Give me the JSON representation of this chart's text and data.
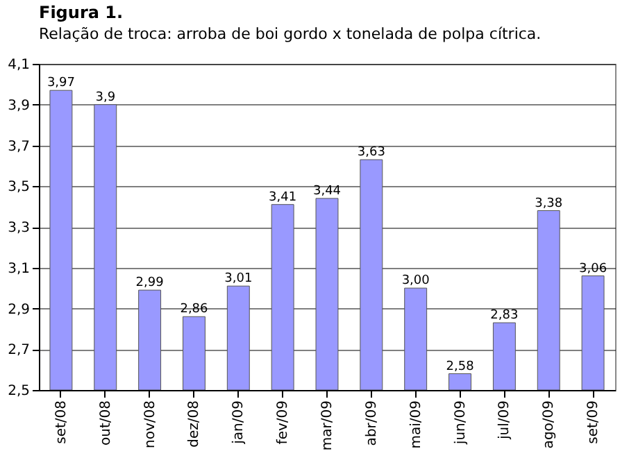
{
  "chart_data": {
    "type": "bar",
    "title": "Figura 1.",
    "subtitle": "Relação de troca: arroba de boi gordo x tonelada de polpa cítrica.",
    "categories": [
      "set/08",
      "out/08",
      "nov/08",
      "dez/08",
      "jan/09",
      "fev/09",
      "mar/09",
      "abr/09",
      "mai/09",
      "jun/09",
      "jul/09",
      "ago/09",
      "set/09"
    ],
    "values": [
      3.97,
      3.9,
      2.99,
      2.86,
      3.01,
      3.41,
      3.44,
      3.63,
      3.0,
      2.58,
      2.83,
      3.38,
      3.06
    ],
    "value_labels": [
      "3,97",
      "3,9",
      "2,99",
      "2,86",
      "3,01",
      "3,41",
      "3,44",
      "3,63",
      "3,00",
      "2,58",
      "2,83",
      "3,38",
      "3,06"
    ],
    "color": "#9999ff",
    "ylim": [
      2.5,
      4.1
    ],
    "yticks": [
      {
        "value": 2.5,
        "label": "2,5"
      },
      {
        "value": 2.7,
        "label": "2,7"
      },
      {
        "value": 2.9,
        "label": "2,9"
      },
      {
        "value": 3.1,
        "label": "3,1"
      },
      {
        "value": 3.3,
        "label": "3,3"
      },
      {
        "value": 3.5,
        "label": "3,5"
      },
      {
        "value": 3.7,
        "label": "3,7"
      },
      {
        "value": 3.9,
        "label": "3,9"
      },
      {
        "value": 4.1,
        "label": "4,1"
      }
    ],
    "grid": "y"
  }
}
